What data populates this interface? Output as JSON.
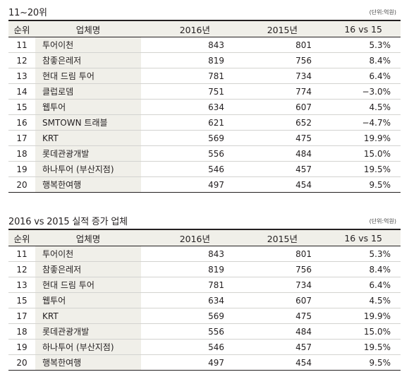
{
  "table1": {
    "title": "11~20위",
    "unit": "(단위:억원)",
    "headers": {
      "rank": "순위",
      "name": "업체명",
      "y2016": "2016년",
      "y2015": "2015년",
      "compare": "16 vs 15"
    },
    "rows": [
      {
        "rank": "11",
        "name": "투어이천",
        "v2016": "843",
        "v2015": "801",
        "change": "5.3%"
      },
      {
        "rank": "12",
        "name": "참좋은레저",
        "v2016": "819",
        "v2015": "756",
        "change": "8.4%"
      },
      {
        "rank": "13",
        "name": "현대 드림 투어",
        "v2016": "781",
        "v2015": "734",
        "change": "6.4%"
      },
      {
        "rank": "14",
        "name": "클럽로뎀",
        "v2016": "751",
        "v2015": "774",
        "change": "−3.0%"
      },
      {
        "rank": "15",
        "name": "웹투어",
        "v2016": "634",
        "v2015": "607",
        "change": "4.5%"
      },
      {
        "rank": "16",
        "name": "SMTOWN 트래블",
        "v2016": "621",
        "v2015": "652",
        "change": "−4.7%"
      },
      {
        "rank": "17",
        "name": "KRT",
        "v2016": "569",
        "v2015": "475",
        "change": "19.9%"
      },
      {
        "rank": "18",
        "name": "롯데관광개발",
        "v2016": "556",
        "v2015": "484",
        "change": "15.0%"
      },
      {
        "rank": "19",
        "name": "하나투어 (부산지점)",
        "v2016": "546",
        "v2015": "457",
        "change": "19.5%"
      },
      {
        "rank": "20",
        "name": "행복한여행",
        "v2016": "497",
        "v2015": "454",
        "change": "9.5%"
      }
    ]
  },
  "table2": {
    "title": "2016 vs 2015 실적 증가 업체",
    "unit": "(단위:억원)",
    "headers": {
      "rank": "순위",
      "name": "업체명",
      "y2016": "2016년",
      "y2015": "2015년",
      "compare": "16 vs 15"
    },
    "rows": [
      {
        "rank": "11",
        "name": "투어이천",
        "v2016": "843",
        "v2015": "801",
        "change": "5.3%"
      },
      {
        "rank": "12",
        "name": "참좋은레저",
        "v2016": "819",
        "v2015": "756",
        "change": "8.4%"
      },
      {
        "rank": "13",
        "name": "현대 드림 투어",
        "v2016": "781",
        "v2015": "734",
        "change": "6.4%"
      },
      {
        "rank": "15",
        "name": "웹투어",
        "v2016": "634",
        "v2015": "607",
        "change": "4.5%"
      },
      {
        "rank": "17",
        "name": "KRT",
        "v2016": "569",
        "v2015": "475",
        "change": "19.9%"
      },
      {
        "rank": "18",
        "name": "롯데관광개발",
        "v2016": "556",
        "v2015": "484",
        "change": "15.0%"
      },
      {
        "rank": "19",
        "name": "하나투어 (부산지점)",
        "v2016": "546",
        "v2015": "457",
        "change": "19.5%"
      },
      {
        "rank": "20",
        "name": "행복한여행",
        "v2016": "497",
        "v2015": "454",
        "change": "9.5%"
      }
    ]
  }
}
